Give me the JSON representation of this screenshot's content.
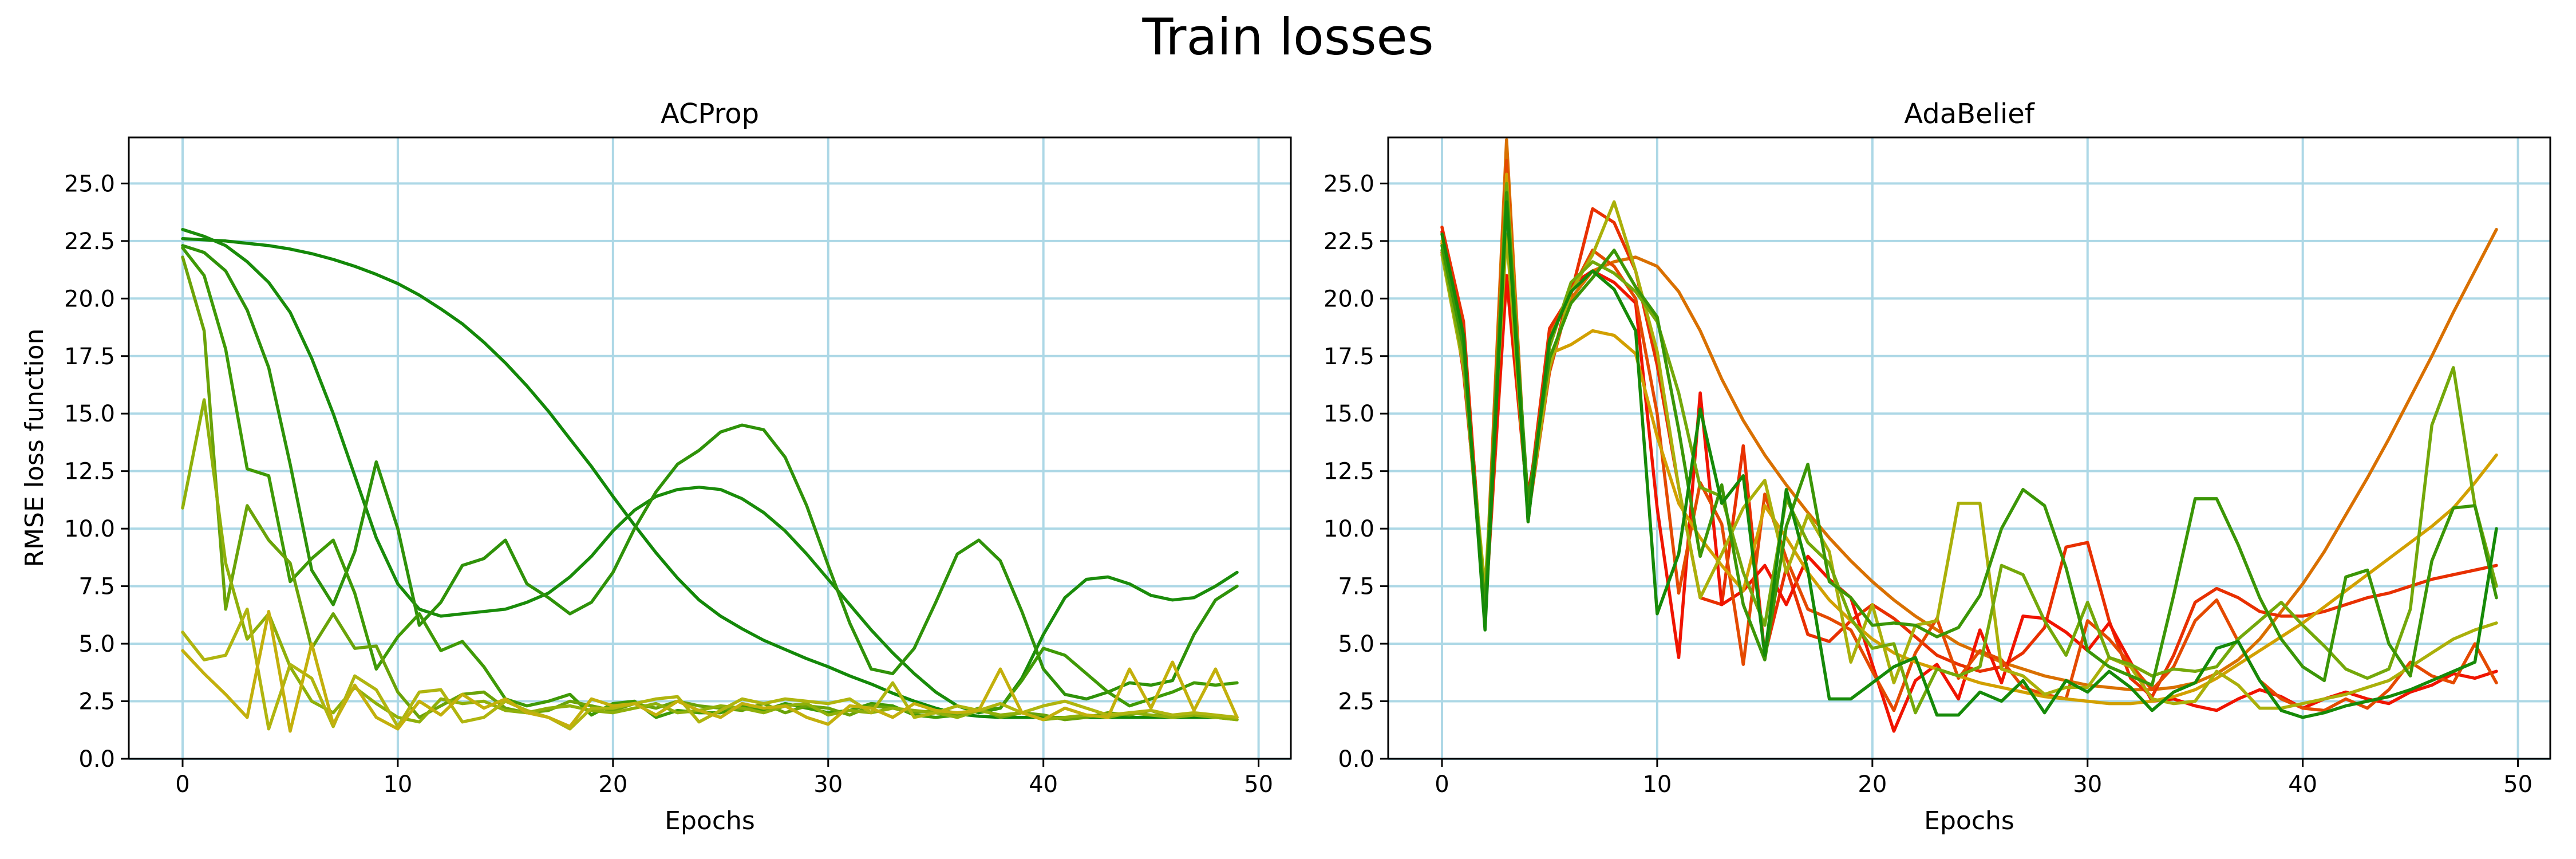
{
  "figure": {
    "title": "Train losses"
  },
  "chart_data": [
    {
      "type": "line",
      "title": "ACProp",
      "xlabel": "Epochs",
      "ylabel": "RMSE loss function",
      "xlim": [
        -2.5,
        51.5
      ],
      "ylim": [
        0,
        27
      ],
      "xticks": [
        0,
        10,
        20,
        30,
        40,
        50
      ],
      "xtick_labels": [
        "0",
        "10",
        "20",
        "30",
        "40",
        "50"
      ],
      "yticks": [
        0,
        2.5,
        5,
        7.5,
        10,
        12.5,
        15,
        17.5,
        20,
        22.5,
        25
      ],
      "ytick_labels": [
        "0.0",
        "2.5",
        "5.0",
        "7.5",
        "10.0",
        "12.5",
        "15.0",
        "17.5",
        "20.0",
        "22.5",
        "25.0"
      ],
      "grid": true,
      "series": [
        {
          "color": "#138808",
          "values": [
            22.6,
            22.55,
            22.5,
            22.4,
            22.3,
            22.15,
            21.95,
            21.7,
            21.4,
            21.05,
            20.65,
            20.15,
            19.55,
            18.9,
            18.1,
            17.2,
            16.2,
            15.1,
            13.9,
            12.7,
            11.4,
            10.15,
            8.95,
            7.85,
            6.9,
            6.2,
            5.65,
            5.15,
            4.75,
            4.35,
            4.0,
            3.6,
            3.25,
            2.85,
            2.5,
            2.2,
            1.95,
            1.85,
            1.8,
            1.8,
            1.8,
            1.8,
            1.8,
            1.8,
            1.8,
            1.8,
            1.8,
            1.8,
            1.8,
            1.8
          ]
        },
        {
          "color": "#1a8c0a",
          "values": [
            23.0,
            22.7,
            22.3,
            21.6,
            20.7,
            19.4,
            17.4,
            15.0,
            12.3,
            9.6,
            7.6,
            6.5,
            6.2,
            6.3,
            6.4,
            6.5,
            6.8,
            7.2,
            7.9,
            8.8,
            9.9,
            10.8,
            11.4,
            11.7,
            11.8,
            11.7,
            11.3,
            10.7,
            9.9,
            8.9,
            7.8,
            6.7,
            5.6,
            4.6,
            3.7,
            2.9,
            2.3,
            2.0,
            2.2,
            3.5,
            5.4,
            7.0,
            7.8,
            7.9,
            7.6,
            7.1,
            6.9,
            7.0,
            7.5,
            8.1
          ]
        },
        {
          "color": "#2f9209",
          "values": [
            22.3,
            22.0,
            21.2,
            19.5,
            17.0,
            12.8,
            8.2,
            6.7,
            9.0,
            12.9,
            10.0,
            5.8,
            6.8,
            8.4,
            8.7,
            9.5,
            7.6,
            7.0,
            6.3,
            6.8,
            8.1,
            10.0,
            11.6,
            12.8,
            13.4,
            14.2,
            14.5,
            14.3,
            13.1,
            11.0,
            8.4,
            5.9,
            3.9,
            3.7,
            4.8,
            6.8,
            8.9,
            9.5,
            8.6,
            6.4,
            3.9,
            2.8,
            2.6,
            2.9,
            3.3,
            3.2,
            3.4,
            5.4,
            6.9,
            7.5
          ]
        },
        {
          "color": "#3f9a06",
          "values": [
            22.2,
            21.0,
            17.8,
            12.6,
            12.3,
            7.7,
            8.7,
            9.5,
            7.2,
            3.9,
            5.3,
            6.3,
            4.7,
            5.1,
            4.0,
            2.6,
            2.3,
            2.5,
            2.8,
            1.9,
            2.4,
            2.5,
            1.8,
            2.1,
            2.0,
            2.0,
            2.3,
            2.1,
            2.4,
            2.2,
            2.0,
            2.1,
            2.4,
            2.3,
            1.9,
            1.8,
            1.9,
            2.1,
            2.2,
            3.4,
            4.8,
            4.5,
            3.7,
            2.9,
            2.3,
            2.6,
            2.9,
            3.3,
            3.2,
            3.3
          ]
        },
        {
          "color": "#6aa308",
          "values": [
            21.8,
            18.6,
            6.5,
            11.0,
            9.5,
            8.5,
            4.8,
            6.3,
            4.8,
            4.9,
            2.9,
            1.8,
            2.3,
            2.8,
            2.9,
            2.2,
            2.0,
            2.1,
            2.5,
            2.3,
            2.1,
            2.4,
            2.2,
            2.5,
            2.3,
            2.2,
            2.1,
            2.4,
            2.0,
            2.3,
            2.2,
            1.9,
            2.3,
            2.2,
            2.0,
            2.1,
            1.9,
            2.2,
            1.8,
            2.0,
            1.9,
            1.7,
            1.8,
            2.0,
            1.9,
            2.1,
            1.8,
            1.9,
            1.8,
            1.7
          ]
        },
        {
          "color": "#8fb00a",
          "values": [
            10.9,
            15.6,
            8.5,
            5.2,
            6.3,
            4.0,
            2.5,
            2.0,
            3.1,
            2.4,
            1.8,
            1.6,
            2.6,
            2.4,
            2.5,
            2.1,
            2.0,
            2.2,
            2.3,
            2.1,
            2.0,
            2.2,
            2.4,
            2.0,
            2.1,
            2.3,
            2.2,
            2.0,
            2.3,
            2.4,
            1.9,
            2.1,
            2.0,
            2.2,
            2.1,
            2.0,
            1.8,
            2.1,
            1.9,
            2.0,
            1.7,
            1.8,
            1.9,
            1.8,
            2.0,
            1.9,
            1.8,
            1.9,
            1.8,
            1.7
          ]
        },
        {
          "color": "#b0b50f",
          "values": [
            5.5,
            4.3,
            4.5,
            6.5,
            1.3,
            4.1,
            3.5,
            1.4,
            3.6,
            3.0,
            1.4,
            2.9,
            3.0,
            1.6,
            1.8,
            2.5,
            2.1,
            1.8,
            1.3,
            2.2,
            2.2,
            2.4,
            2.6,
            2.7,
            1.6,
            2.1,
            2.6,
            2.4,
            2.6,
            2.5,
            2.4,
            2.6,
            2.0,
            3.3,
            1.8,
            2.0,
            2.3,
            2.1,
            2.4,
            2.0,
            2.3,
            2.5,
            2.2,
            1.9,
            2.0,
            2.1,
            1.9,
            2.0,
            1.9,
            1.8
          ]
        },
        {
          "color": "#c3b00c",
          "values": [
            4.7,
            3.7,
            2.8,
            1.8,
            6.4,
            1.2,
            5.0,
            1.5,
            3.2,
            1.8,
            1.3,
            2.5,
            1.9,
            2.8,
            2.2,
            2.6,
            2.0,
            1.8,
            1.4,
            2.6,
            2.3,
            2.4,
            1.9,
            2.5,
            2.1,
            1.8,
            2.4,
            2.2,
            2.3,
            1.8,
            1.5,
            2.3,
            2.2,
            1.8,
            2.4,
            2.1,
            2.0,
            2.1,
            3.9,
            2.0,
            1.7,
            2.2,
            1.9,
            1.8,
            3.9,
            2.2,
            4.2,
            2.1,
            3.9,
            1.8
          ]
        }
      ]
    },
    {
      "type": "line",
      "title": "AdaBelief",
      "xlabel": "Epochs",
      "ylabel": "",
      "xlim": [
        -2.5,
        51.5
      ],
      "ylim": [
        0,
        27
      ],
      "xticks": [
        0,
        10,
        20,
        30,
        40,
        50
      ],
      "xtick_labels": [
        "0",
        "10",
        "20",
        "30",
        "40",
        "50"
      ],
      "yticks": [
        0,
        2.5,
        5,
        7.5,
        10,
        12.5,
        15,
        17.5,
        20,
        22.5,
        25
      ],
      "ytick_labels": [
        "0.0",
        "2.5",
        "5.0",
        "7.5",
        "10.0",
        "12.5",
        "15.0",
        "17.5",
        "20.0",
        "22.5",
        "25.0"
      ],
      "grid": true,
      "series": [
        {
          "color": "#d97000",
          "values": [
            22.4,
            18.6,
            6.6,
            26.9,
            10.3,
            18.5,
            20.0,
            21.2,
            21.6,
            21.8,
            21.4,
            20.3,
            18.6,
            16.5,
            14.7,
            13.2,
            11.9,
            10.7,
            9.6,
            8.6,
            7.7,
            6.9,
            6.2,
            5.6,
            5.0,
            4.6,
            4.2,
            3.9,
            3.6,
            3.4,
            3.2,
            3.1,
            3.0,
            3.0,
            3.1,
            3.3,
            3.7,
            4.3,
            5.2,
            6.4,
            7.6,
            9.0,
            10.6,
            12.2,
            13.9,
            15.7,
            17.5,
            19.4,
            21.2,
            23.0
          ]
        },
        {
          "color": "#e83000",
          "values": [
            23.1,
            19.0,
            6.2,
            20.9,
            11.0,
            18.7,
            20.2,
            23.9,
            23.3,
            21.2,
            17.1,
            11.8,
            7.0,
            6.7,
            13.6,
            4.5,
            8.3,
            5.4,
            5.1,
            6.0,
            6.7,
            6.1,
            5.3,
            4.5,
            4.1,
            3.8,
            4.0,
            4.6,
            5.7,
            9.2,
            9.4,
            6.0,
            3.5,
            2.7,
            4.5,
            6.8,
            7.4,
            7.0,
            6.4,
            6.2,
            6.2,
            6.4,
            6.7,
            7.0,
            7.2,
            7.5,
            7.8,
            8.0,
            8.2,
            8.4
          ]
        },
        {
          "color": "#f01400",
          "values": [
            22.9,
            16.8,
            7.2,
            21.0,
            11.5,
            16.9,
            20.6,
            21.2,
            20.7,
            19.8,
            10.9,
            4.4,
            15.9,
            6.7,
            7.3,
            8.4,
            6.7,
            8.8,
            7.8,
            7.0,
            4.1,
            1.2,
            3.4,
            4.1,
            2.6,
            5.6,
            3.3,
            6.2,
            6.1,
            5.5,
            4.7,
            5.9,
            4.2,
            2.5,
            2.6,
            2.3,
            2.1,
            2.6,
            3.0,
            2.7,
            2.2,
            2.6,
            2.9,
            2.6,
            2.4,
            2.9,
            3.2,
            3.7,
            3.5,
            3.8
          ]
        },
        {
          "color": "#e44a00",
          "values": [
            22.0,
            17.2,
            6.4,
            26.0,
            10.5,
            16.8,
            20.3,
            22.1,
            21.4,
            20.0,
            15.0,
            7.2,
            12.0,
            10.2,
            4.1,
            11.5,
            8.7,
            6.5,
            6.1,
            5.6,
            3.8,
            2.1,
            4.6,
            6.1,
            3.5,
            4.7,
            4.3,
            3.1,
            2.8,
            2.6,
            6.0,
            5.2,
            4.1,
            3.0,
            4.0,
            6.0,
            6.9,
            5.1,
            3.4,
            2.6,
            2.2,
            2.1,
            2.6,
            2.2,
            3.0,
            4.2,
            3.6,
            3.3,
            5.0,
            3.3
          ]
        },
        {
          "color": "#d2a000",
          "values": [
            22.5,
            18.2,
            6.0,
            25.4,
            10.8,
            17.6,
            18.0,
            18.6,
            18.4,
            17.6,
            14.0,
            11.1,
            9.6,
            8.4,
            7.3,
            11.0,
            9.6,
            8.1,
            6.9,
            6.0,
            5.2,
            4.6,
            4.2,
            3.9,
            3.6,
            3.3,
            3.1,
            2.9,
            2.7,
            2.6,
            2.5,
            2.4,
            2.4,
            2.5,
            2.7,
            3.0,
            3.5,
            4.1,
            4.7,
            5.3,
            5.9,
            6.6,
            7.3,
            8.0,
            8.7,
            9.4,
            10.1,
            10.9,
            12.0,
            13.2
          ]
        },
        {
          "color": "#aab00a",
          "values": [
            21.9,
            17.0,
            7.4,
            22.8,
            10.6,
            17.0,
            20.3,
            21.9,
            24.2,
            21.2,
            17.7,
            11.8,
            7.0,
            8.9,
            10.9,
            12.1,
            8.1,
            10.6,
            9.0,
            4.2,
            6.7,
            3.3,
            5.8,
            6.0,
            11.1,
            11.1,
            3.9,
            3.6,
            2.8,
            3.1,
            3.1,
            4.4,
            4.0,
            2.6,
            2.4,
            2.5,
            3.8,
            3.2,
            2.2,
            2.2,
            2.4,
            2.6,
            2.8,
            3.1,
            3.4,
            4.0,
            4.6,
            5.2,
            5.6,
            5.9
          ]
        },
        {
          "color": "#74a80a",
          "values": [
            22.1,
            17.3,
            6.6,
            25.0,
            10.9,
            17.9,
            20.7,
            21.6,
            21.1,
            20.3,
            19.0,
            15.9,
            11.8,
            11.4,
            8.1,
            5.8,
            11.3,
            9.4,
            8.5,
            6.1,
            4.8,
            5.0,
            2.0,
            3.9,
            3.6,
            4.0,
            8.4,
            8.0,
            6.0,
            4.5,
            6.8,
            4.4,
            4.1,
            3.6,
            3.9,
            3.8,
            4.0,
            5.2,
            6.0,
            6.8,
            5.8,
            4.9,
            3.9,
            3.5,
            3.9,
            6.5,
            14.5,
            17.0,
            11.0,
            7.5
          ]
        },
        {
          "color": "#3b9606",
          "values": [
            22.3,
            17.9,
            6.5,
            24.6,
            11.2,
            17.4,
            19.8,
            20.9,
            22.1,
            20.5,
            19.2,
            14.3,
            8.8,
            11.9,
            6.7,
            4.3,
            10.1,
            12.8,
            7.7,
            7.0,
            5.8,
            5.9,
            5.8,
            5.3,
            5.7,
            7.1,
            10.0,
            11.7,
            11.0,
            8.3,
            4.7,
            4.0,
            3.6,
            3.2,
            7.1,
            11.3,
            11.3,
            9.3,
            7.0,
            5.2,
            4.0,
            3.4,
            7.9,
            8.2,
            5.0,
            3.6,
            8.6,
            10.9,
            11.0,
            7.0
          ]
        },
        {
          "color": "#168a08",
          "values": [
            22.8,
            18.4,
            5.6,
            24.2,
            10.3,
            18.2,
            20.3,
            21.2,
            20.4,
            18.6,
            6.3,
            8.9,
            15.2,
            11.1,
            12.3,
            4.5,
            11.7,
            8.2,
            2.6,
            2.6,
            3.3,
            4.0,
            4.4,
            1.9,
            1.9,
            2.9,
            2.5,
            3.4,
            2.0,
            3.4,
            2.9,
            3.8,
            3.1,
            2.1,
            2.9,
            3.3,
            4.8,
            5.1,
            3.4,
            2.1,
            1.8,
            2.0,
            2.3,
            2.5,
            2.7,
            3.0,
            3.4,
            3.8,
            4.2,
            10.0
          ]
        }
      ]
    }
  ]
}
